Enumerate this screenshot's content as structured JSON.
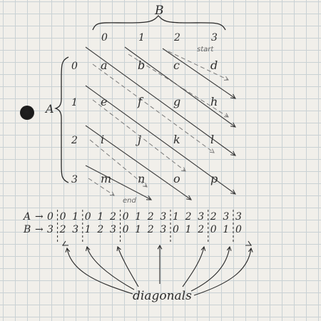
{
  "labels": {
    "B": "B",
    "A": "A",
    "start": "start",
    "end": "end",
    "diagonals": "diagonals"
  },
  "columns": [
    "0",
    "1",
    "2",
    "3"
  ],
  "rows": [
    "0",
    "1",
    "2",
    "3"
  ],
  "grid": [
    [
      "a",
      "b",
      "c",
      "d"
    ],
    [
      "e",
      "f",
      "g",
      "h"
    ],
    [
      "i",
      "j",
      "k",
      "l"
    ],
    [
      "m",
      "n",
      "o",
      "p"
    ]
  ],
  "sequence": {
    "A_label": "A",
    "B_label": "B",
    "arrow": "→",
    "A_values": [
      "0",
      "0",
      "1",
      "0",
      "1",
      "2",
      "0",
      "1",
      "2",
      "3",
      "1",
      "2",
      "3",
      "2",
      "3",
      "3"
    ],
    "B_values": [
      "3",
      "2",
      "3",
      "1",
      "2",
      "3",
      "0",
      "1",
      "2",
      "3",
      "0",
      "1",
      "2",
      "0",
      "1",
      "0"
    ]
  },
  "colors": {
    "ink": "#2a2a2a",
    "pencil": "#6b6b6b",
    "grid": "#c9d1d4",
    "paper": "#f1efea"
  }
}
